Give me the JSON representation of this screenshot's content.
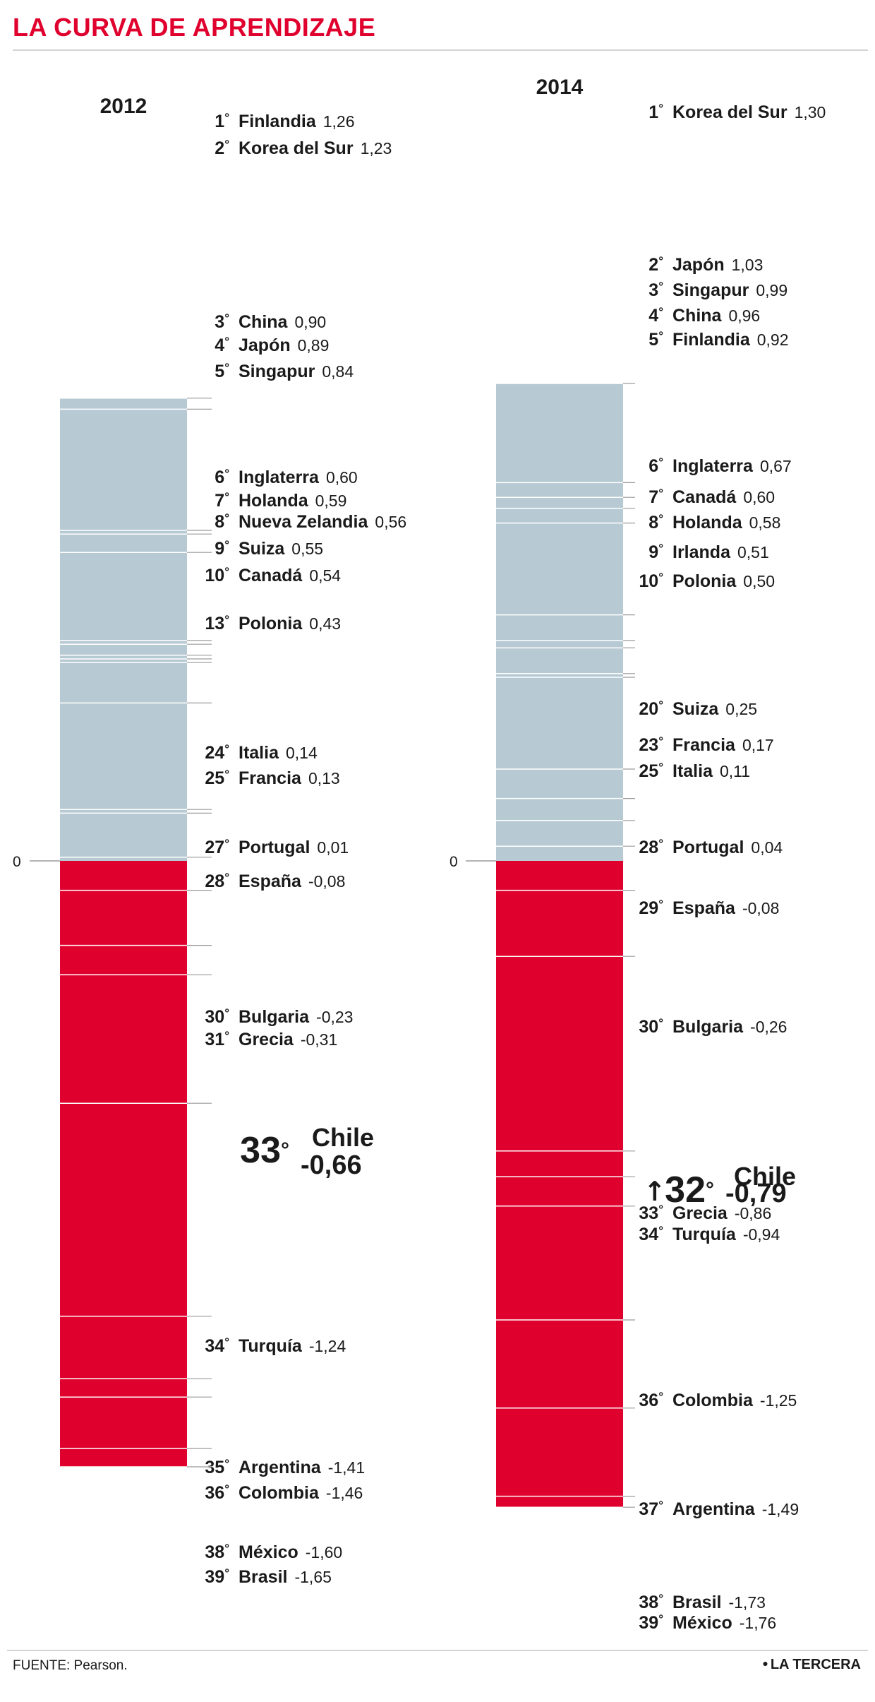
{
  "title": "LA CURVA DE APRENDIZAJE",
  "source": "FUENTE: Pearson.",
  "brand": "LA TERCERA",
  "colors": {
    "positive": "#b7c9d3",
    "negative": "#e0002e",
    "accent": "#e0002e"
  },
  "chart_data": {
    "type": "bar",
    "ylim": [
      -1.76,
      1.3
    ],
    "zero_label": "0",
    "series": [
      {
        "name": "2012",
        "points": [
          {
            "rank": "1",
            "country": "Finlandia",
            "value": 1.26,
            "value_label": "1,26"
          },
          {
            "rank": "2",
            "country": "Korea del Sur",
            "value": 1.23,
            "value_label": "1,23"
          },
          {
            "rank": "3",
            "country": "China",
            "value": 0.9,
            "value_label": "0,90"
          },
          {
            "rank": "4",
            "country": "Japón",
            "value": 0.89,
            "value_label": "0,89"
          },
          {
            "rank": "5",
            "country": "Singapur",
            "value": 0.84,
            "value_label": "0,84"
          },
          {
            "rank": "6",
            "country": "Inglaterra",
            "value": 0.6,
            "value_label": "0,60"
          },
          {
            "rank": "7",
            "country": "Holanda",
            "value": 0.59,
            "value_label": "0,59"
          },
          {
            "rank": "8",
            "country": "Nueva Zelandia",
            "value": 0.56,
            "value_label": "0,56"
          },
          {
            "rank": "9",
            "country": "Suiza",
            "value": 0.55,
            "value_label": "0,55"
          },
          {
            "rank": "10",
            "country": "Canadá",
            "value": 0.54,
            "value_label": "0,54"
          },
          {
            "rank": "13",
            "country": "Polonia",
            "value": 0.43,
            "value_label": "0,43"
          },
          {
            "rank": "24",
            "country": "Italia",
            "value": 0.14,
            "value_label": "0,14"
          },
          {
            "rank": "25",
            "country": "Francia",
            "value": 0.13,
            "value_label": "0,13"
          },
          {
            "rank": "27",
            "country": "Portugal",
            "value": 0.01,
            "value_label": "0,01"
          },
          {
            "rank": "28",
            "country": "España",
            "value": -0.08,
            "value_label": "-0,08"
          },
          {
            "rank": "30",
            "country": "Bulgaria",
            "value": -0.23,
            "value_label": "-0,23"
          },
          {
            "rank": "31",
            "country": "Grecia",
            "value": -0.31,
            "value_label": "-0,31"
          },
          {
            "rank": "33",
            "country": "Chile",
            "value": -0.66,
            "value_label": "-0,66",
            "highlight": true
          },
          {
            "rank": "34",
            "country": "Turquía",
            "value": -1.24,
            "value_label": "-1,24"
          },
          {
            "rank": "35",
            "country": "Argentina",
            "value": -1.41,
            "value_label": "-1,41"
          },
          {
            "rank": "36",
            "country": "Colombia",
            "value": -1.46,
            "value_label": "-1,46"
          },
          {
            "rank": "38",
            "country": "México",
            "value": -1.6,
            "value_label": "-1,60"
          },
          {
            "rank": "39",
            "country": "Brasil",
            "value": -1.65,
            "value_label": "-1,65"
          }
        ]
      },
      {
        "name": "2014",
        "points": [
          {
            "rank": "1",
            "country": "Korea del Sur",
            "value": 1.3,
            "value_label": "1,30"
          },
          {
            "rank": "2",
            "country": "Japón",
            "value": 1.03,
            "value_label": "1,03"
          },
          {
            "rank": "3",
            "country": "Singapur",
            "value": 0.99,
            "value_label": "0,99"
          },
          {
            "rank": "4",
            "country": "China",
            "value": 0.96,
            "value_label": "0,96"
          },
          {
            "rank": "5",
            "country": "Finlandia",
            "value": 0.92,
            "value_label": "0,92"
          },
          {
            "rank": "6",
            "country": "Inglaterra",
            "value": 0.67,
            "value_label": "0,67"
          },
          {
            "rank": "7",
            "country": "Canadá",
            "value": 0.6,
            "value_label": "0,60"
          },
          {
            "rank": "8",
            "country": "Holanda",
            "value": 0.58,
            "value_label": "0,58"
          },
          {
            "rank": "9",
            "country": "Irlanda",
            "value": 0.51,
            "value_label": "0,51"
          },
          {
            "rank": "10",
            "country": "Polonia",
            "value": 0.5,
            "value_label": "0,50"
          },
          {
            "rank": "20",
            "country": "Suiza",
            "value": 0.25,
            "value_label": "0,25"
          },
          {
            "rank": "23",
            "country": "Francia",
            "value": 0.17,
            "value_label": "0,17"
          },
          {
            "rank": "25",
            "country": "Italia",
            "value": 0.11,
            "value_label": "0,11"
          },
          {
            "rank": "28",
            "country": "Portugal",
            "value": 0.04,
            "value_label": "0,04"
          },
          {
            "rank": "29",
            "country": "España",
            "value": -0.08,
            "value_label": "-0,08"
          },
          {
            "rank": "30",
            "country": "Bulgaria",
            "value": -0.26,
            "value_label": "-0,26"
          },
          {
            "rank": "32",
            "country": "Chile",
            "value": -0.79,
            "value_label": "-0,79",
            "highlight": true,
            "trend": "up"
          },
          {
            "rank": "33",
            "country": "Grecia",
            "value": -0.86,
            "value_label": "-0,86"
          },
          {
            "rank": "34",
            "country": "Turquía",
            "value": -0.94,
            "value_label": "-0,94"
          },
          {
            "rank": "36",
            "country": "Colombia",
            "value": -1.25,
            "value_label": "-1,25"
          },
          {
            "rank": "37",
            "country": "Argentina",
            "value": -1.49,
            "value_label": "-1,49"
          },
          {
            "rank": "38",
            "country": "Brasil",
            "value": -1.73,
            "value_label": "-1,73"
          },
          {
            "rank": "39",
            "country": "México",
            "value": -1.76,
            "value_label": "-1,76"
          }
        ]
      }
    ]
  }
}
